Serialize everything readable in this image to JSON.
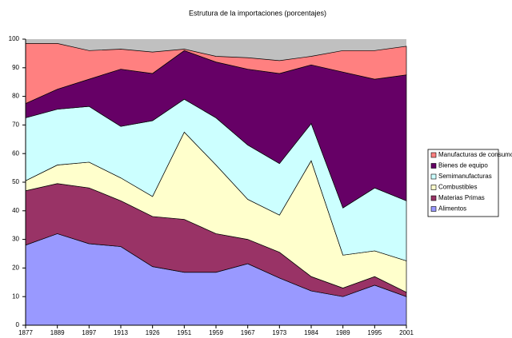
{
  "chart_data": {
    "type": "stacked-area",
    "title": "Estrutura de la importaciones (porcentajes)",
    "categories": [
      "1877",
      "1889",
      "1897",
      "1913",
      "1926",
      "1951",
      "1959",
      "1967",
      "1973",
      "1984",
      "1989",
      "1995",
      "2001"
    ],
    "series": [
      {
        "name": "Alimentos",
        "color": "#9999ff",
        "values": [
          28,
          32,
          28.5,
          27.5,
          20.5,
          18.5,
          18.5,
          21.5,
          16.5,
          12,
          10,
          14,
          10
        ]
      },
      {
        "name": "Materias Primas",
        "color": "#993366",
        "values": [
          19,
          17.5,
          19.5,
          16,
          17.5,
          18.5,
          13.5,
          8.5,
          9,
          5,
          3,
          3,
          1.5
        ]
      },
      {
        "name": "Combustibles",
        "color": "#ffffcc",
        "values": [
          3.5,
          6.5,
          9,
          8,
          7,
          30.5,
          24,
          14,
          13,
          40.5,
          11.5,
          9,
          11
        ]
      },
      {
        "name": "Semimanufacturas",
        "color": "#ccffff",
        "values": [
          22,
          19.5,
          19.5,
          18,
          26.5,
          11.5,
          16.5,
          19,
          18,
          13,
          16.5,
          22,
          21
        ]
      },
      {
        "name": "Bienes de equipo",
        "color": "#660066",
        "values": [
          5,
          7,
          9.5,
          20,
          16.5,
          17,
          19.5,
          26.5,
          31.5,
          20.5,
          47.5,
          38,
          44
        ]
      },
      {
        "name": "Manufacturas de consumo",
        "color": "#ff8080",
        "values": [
          21,
          16,
          10,
          7,
          7.5,
          0.5,
          2,
          4,
          4.5,
          3,
          7.5,
          10,
          10
        ]
      }
    ],
    "ylim": [
      0,
      100
    ],
    "yticks": [
      0,
      10,
      20,
      30,
      40,
      50,
      60,
      70,
      80,
      90,
      100
    ]
  }
}
